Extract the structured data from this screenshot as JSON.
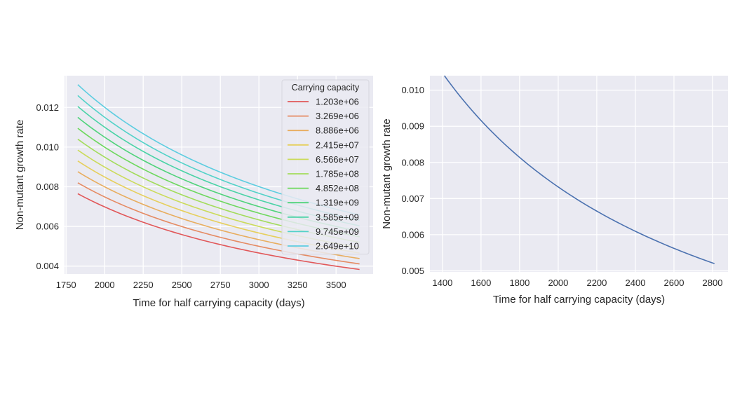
{
  "chart_data": [
    {
      "type": "line",
      "xlabel": "Time for half carrying capacity (days)",
      "ylabel": "Non-mutant growth rate",
      "xlim": [
        1740,
        3740
      ],
      "ylim": [
        0.0036,
        0.0136
      ],
      "xticks": [
        1750,
        2000,
        2250,
        2500,
        2750,
        3000,
        3250,
        3500
      ],
      "yticks": [
        0.004,
        0.006,
        0.008,
        0.01,
        0.012
      ],
      "ytick_labels": [
        "0.004",
        "0.006",
        "0.008",
        "0.010",
        "0.012"
      ],
      "grid": true,
      "legend": {
        "title": "Carrying capacity",
        "placement": "top-right"
      },
      "x_start": 1826,
      "x_end": 3652,
      "series": [
        {
          "name": "1.203e+06",
          "color": "#e15759",
          "y_start": 0.00765,
          "y_end": 0.00383
        },
        {
          "name": "3.269e+06",
          "color": "#e58a62",
          "y_start": 0.0082,
          "y_end": 0.00411
        },
        {
          "name": "8.886e+06",
          "color": "#e8ad5e",
          "y_start": 0.00876,
          "y_end": 0.00438
        },
        {
          "name": "2.415e+07",
          "color": "#e6cf5c",
          "y_start": 0.0093,
          "y_end": 0.00466
        },
        {
          "name": "6.566e+07",
          "color": "#cbdb5a",
          "y_start": 0.00985,
          "y_end": 0.00493
        },
        {
          "name": "1.785e+08",
          "color": "#a3dc5b",
          "y_start": 0.0104,
          "y_end": 0.0052
        },
        {
          "name": "4.852e+08",
          "color": "#6ed85e",
          "y_start": 0.01095,
          "y_end": 0.00548
        },
        {
          "name": "1.319e+09",
          "color": "#4fd37a",
          "y_start": 0.0115,
          "y_end": 0.00575
        },
        {
          "name": "3.585e+09",
          "color": "#4ad3a6",
          "y_start": 0.01205,
          "y_end": 0.00603
        },
        {
          "name": "9.745e+09",
          "color": "#52d2c8",
          "y_start": 0.0126,
          "y_end": 0.0063
        },
        {
          "name": "2.649e+10",
          "color": "#5ccde0",
          "y_start": 0.01315,
          "y_end": 0.00658
        }
      ]
    },
    {
      "type": "line",
      "xlabel": "Time for half carrying capacity (days)",
      "ylabel": "Non-mutant growth rate",
      "xlim": [
        1335,
        2880
      ],
      "ylim": [
        0.00497,
        0.0104
      ],
      "xticks": [
        1400,
        1600,
        1800,
        2000,
        2200,
        2400,
        2600,
        2800
      ],
      "yticks": [
        0.005,
        0.006,
        0.007,
        0.008,
        0.009,
        0.01
      ],
      "ytick_labels": [
        "0.005",
        "0.006",
        "0.007",
        "0.008",
        "0.009",
        "0.010"
      ],
      "grid": true,
      "x_start": 1410,
      "x_end": 2810,
      "series": [
        {
          "color": "#4c72b0",
          "y_start": 0.0104,
          "y_end": 0.0052
        }
      ]
    }
  ]
}
